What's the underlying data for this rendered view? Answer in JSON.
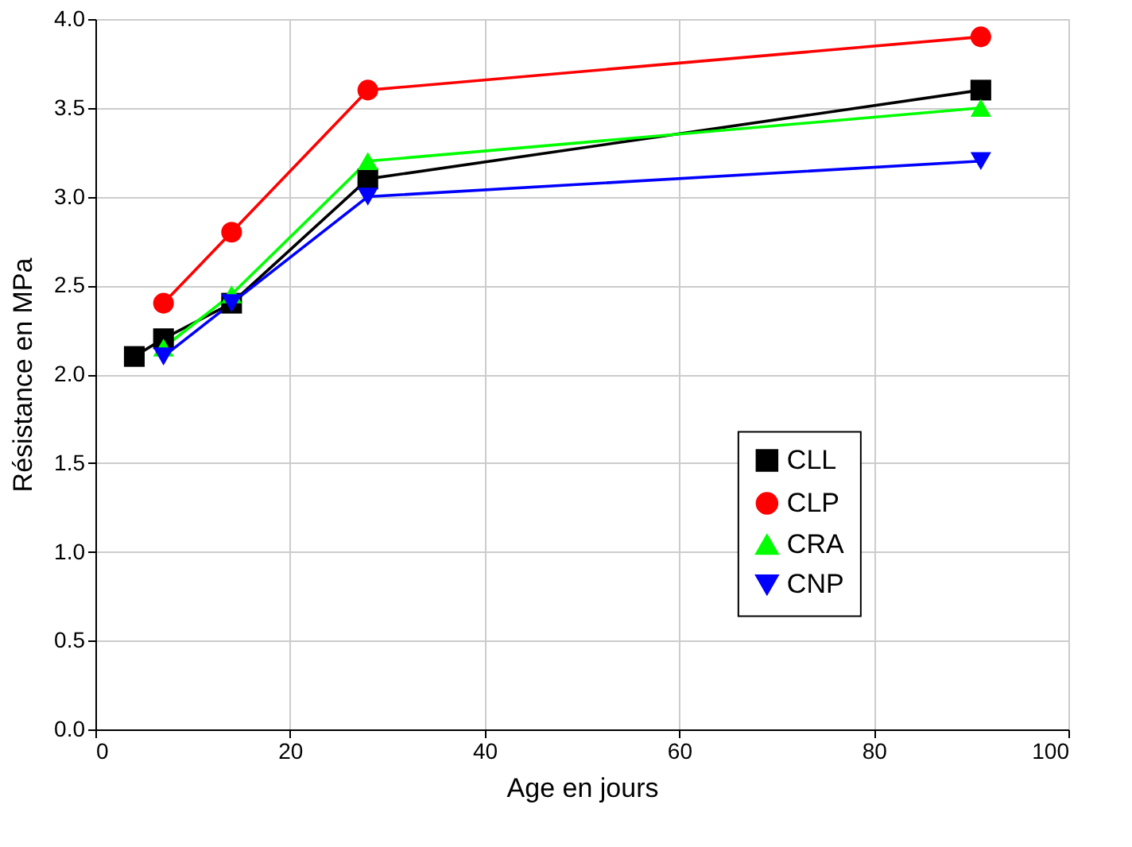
{
  "chart_data": {
    "type": "line",
    "xlabel": "Age en jours",
    "ylabel": "Résistance en MPa",
    "xlim": [
      0,
      100
    ],
    "xticks": [
      0,
      20,
      40,
      60,
      80,
      100
    ],
    "ylim": [
      0,
      4
    ],
    "yticks": [
      {
        "value": 0,
        "label": "0.0"
      },
      {
        "value": 0.5,
        "label": "0.5"
      },
      {
        "value": 1,
        "label": "1.0"
      },
      {
        "value": 1.5,
        "label": "1.5"
      },
      {
        "value": 2,
        "label": "2.0"
      },
      {
        "value": 2.5,
        "label": "2.5"
      },
      {
        "value": 3,
        "label": "3.0"
      },
      {
        "value": 3.5,
        "label": "3.5"
      },
      {
        "value": 4,
        "label": "4.0"
      }
    ],
    "grid": true,
    "legend": "right",
    "line_style": "solid",
    "series": [
      {
        "name": "CLL",
        "color": "#000000",
        "marker": "square",
        "x": [
          4,
          7,
          14,
          28,
          91
        ],
        "values": [
          2.1,
          2.2,
          2.4,
          3.1,
          3.6
        ]
      },
      {
        "name": "CLP",
        "color": "#ff0000",
        "marker": "circle",
        "x": [
          7,
          14,
          28,
          91
        ],
        "values": [
          2.4,
          2.8,
          3.6,
          3.9
        ]
      },
      {
        "name": "CRA",
        "color": "#00ff00",
        "marker": "triangle",
        "x": [
          7,
          14,
          28,
          91
        ],
        "values": [
          2.15,
          2.45,
          3.2,
          3.5
        ]
      },
      {
        "name": "CNP",
        "color": "#0000ff",
        "marker": "triangle-down",
        "x": [
          7,
          14,
          28,
          91
        ],
        "values": [
          2.1,
          2.4,
          3.0,
          3.2
        ]
      }
    ]
  }
}
